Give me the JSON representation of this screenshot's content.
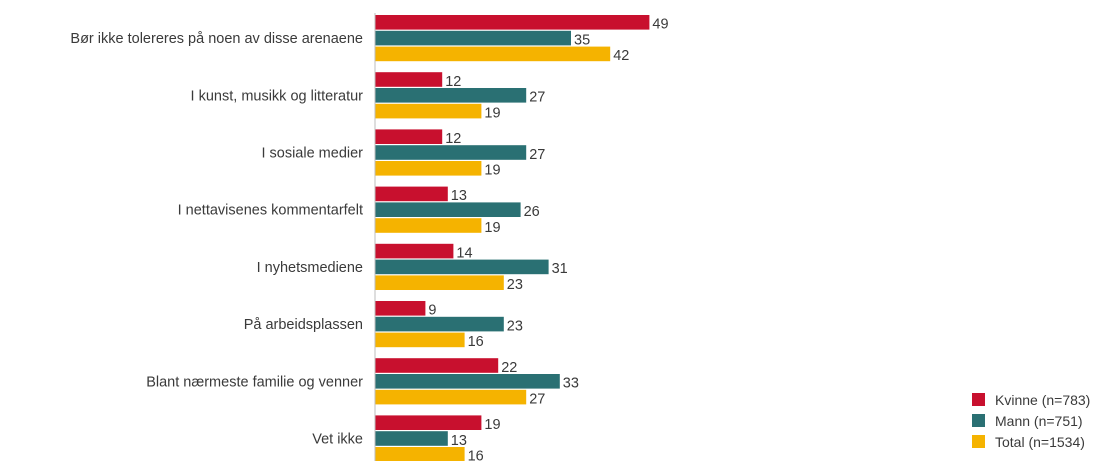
{
  "chart_data": {
    "type": "bar",
    "orientation": "horizontal",
    "categories": [
      "Bør ikke tolereres på noen av disse arenaene",
      "I kunst, musikk og litteratur",
      "I sosiale medier",
      "I nettavisenes kommentarfelt",
      "I nyhetsmediene",
      "På arbeidsplassen",
      "Blant nærmeste familie og venner",
      "Vet ikke"
    ],
    "series": [
      {
        "name": "Kvinne (n=783)",
        "color": "#c8102e",
        "values": [
          49,
          12,
          12,
          13,
          14,
          9,
          22,
          19
        ]
      },
      {
        "name": "Mann (n=751)",
        "color": "#2a7073",
        "values": [
          35,
          27,
          27,
          26,
          31,
          23,
          33,
          13
        ]
      },
      {
        "name": "Total (n=1534)",
        "color": "#f5b300",
        "values": [
          42,
          19,
          19,
          19,
          23,
          16,
          27,
          16
        ]
      }
    ],
    "xlim": [
      0,
      49
    ],
    "grid": false,
    "legend_position": "bottom-right"
  }
}
